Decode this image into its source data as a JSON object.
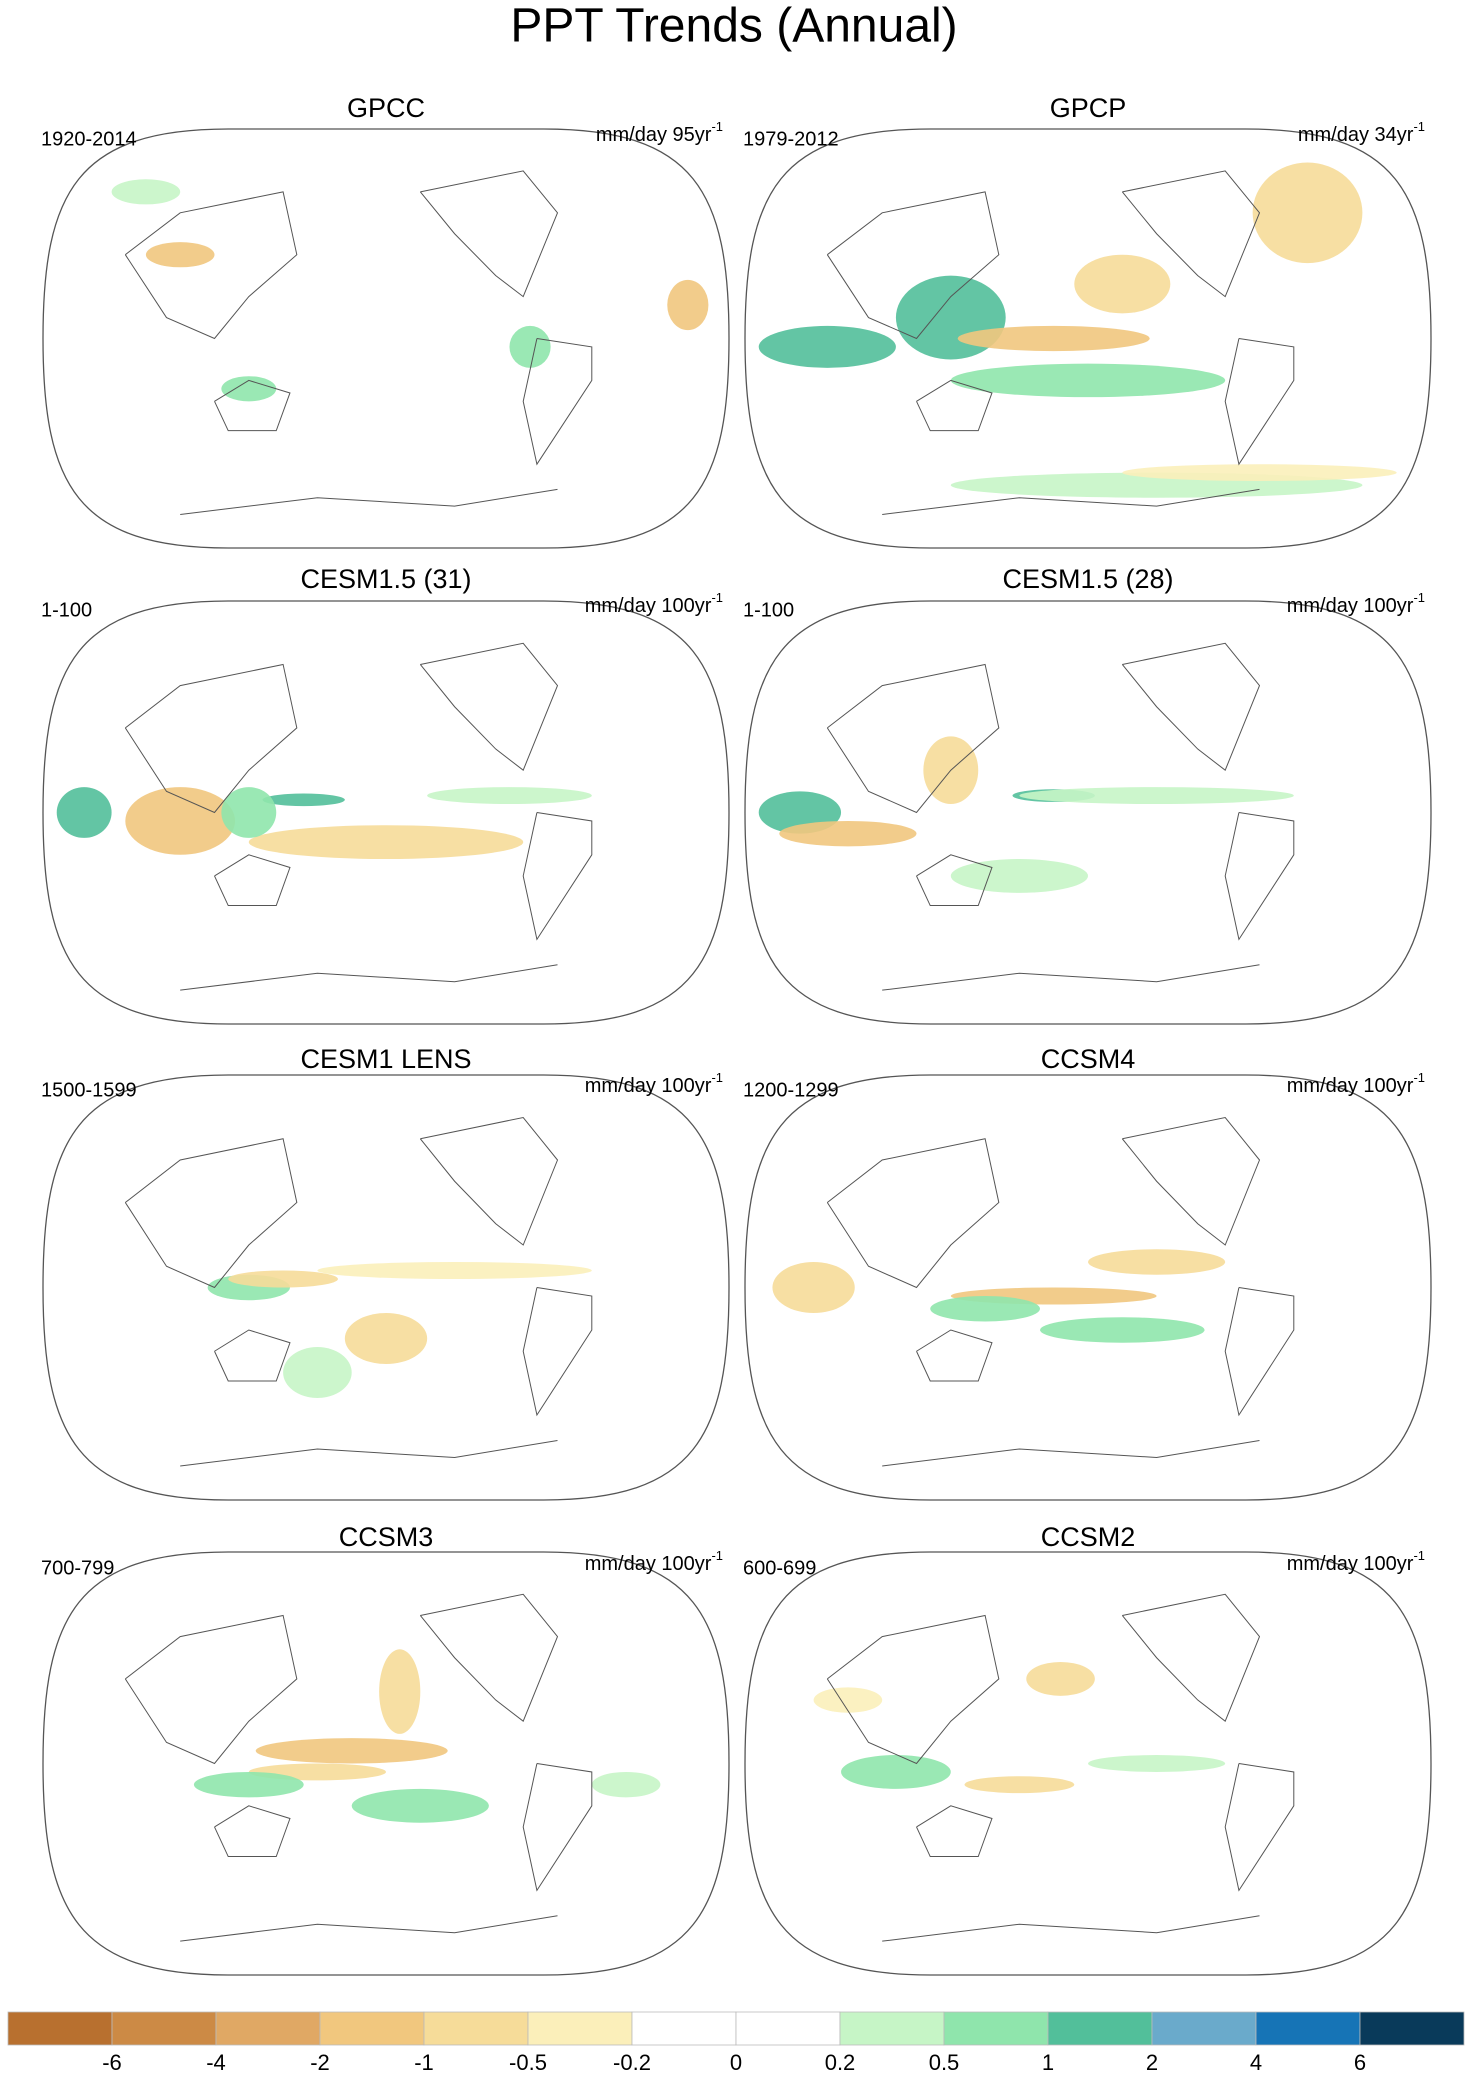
{
  "title": "PPT Trends (Annual)",
  "panels": [
    {
      "title": "GPCC",
      "period": "1920-2014",
      "units": "mm/day 95yr",
      "units_exponent": "-1"
    },
    {
      "title": "GPCP",
      "period": "1979-2012",
      "units": "mm/day 34yr",
      "units_exponent": "-1"
    },
    {
      "title": "CESM1.5 (31)",
      "period": "1-100",
      "units": "mm/day 100yr",
      "units_exponent": "-1"
    },
    {
      "title": "CESM1.5 (28)",
      "period": "1-100",
      "units": "mm/day 100yr",
      "units_exponent": "-1"
    },
    {
      "title": "CESM1 LENS",
      "period": "1500-1599",
      "units": "mm/day 100yr",
      "units_exponent": "-1"
    },
    {
      "title": "CCSM4",
      "period": "1200-1299",
      "units": "mm/day 100yr",
      "units_exponent": "-1"
    },
    {
      "title": "CCSM3",
      "period": "700-799",
      "units": "mm/day 100yr",
      "units_exponent": "-1"
    },
    {
      "title": "CCSM2",
      "period": "600-699",
      "units": "mm/day 100yr",
      "units_exponent": "-1"
    }
  ],
  "colorbar": {
    "colors": [
      "#b8702f",
      "#cc8a45",
      "#e0a864",
      "#f1c77e",
      "#f6dc99",
      "#fbefba",
      "#ffffff",
      "#ffffff",
      "#c6f5c6",
      "#8fe5ac",
      "#52bf9a",
      "#6aaacb",
      "#1674b6",
      "#093a5a"
    ],
    "levels": [
      -6,
      -4,
      -2,
      -1,
      -0.5,
      -0.2,
      0,
      0.2,
      0.5,
      1,
      2,
      4,
      6
    ]
  }
}
